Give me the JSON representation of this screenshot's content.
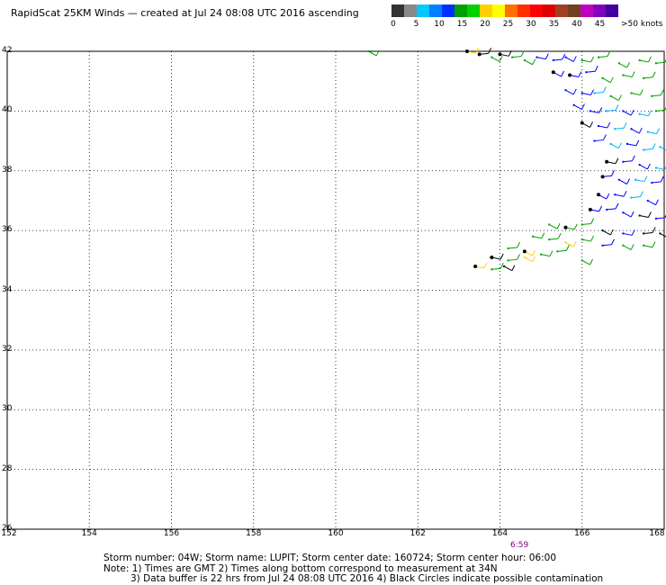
{
  "title": "RapidScat 25KM Winds — created at Jul 24 08:08 UTC 2016 ascending",
  "colorbar": {
    "colors": [
      "#333333",
      "#888888",
      "#00c8ff",
      "#0080ff",
      "#0030ff",
      "#00a000",
      "#00d000",
      "#ffd000",
      "#ffff00",
      "#ff7000",
      "#ff3000",
      "#ff0000",
      "#e00000",
      "#a04020",
      "#704020",
      "#c000c0",
      "#8000c0",
      "#4000a0"
    ],
    "labels": [
      "0",
      "5",
      "10",
      "15",
      "20",
      "25",
      "30",
      "35",
      "40",
      "45",
      ">50 knots"
    ]
  },
  "lat_labels": [
    "42",
    "40",
    "38",
    "36",
    "34",
    "32",
    "30",
    "28",
    "26"
  ],
  "lon_labels": [
    "152",
    "154",
    "156",
    "158",
    "160",
    "162",
    "164",
    "166",
    "168"
  ],
  "time_label": "6:59",
  "notes": {
    "line1": "Storm number: 04W;  Storm name: LUPIT;  Storm center date: 160724;  Storm center hour: 06:00",
    "line2": "Note: 1) Times are GMT  2) Times along bottom correspond to measurement at 34N",
    "line3": "3) Data buffer is 22 hrs from Jul 24 08:08 UTC 2016   4) Black Circles indicate possible contamination"
  },
  "map_data": {
    "lat_range": [
      26,
      42
    ],
    "lon_range": [
      152,
      168
    ],
    "wind_colors": {
      "black": "#000000",
      "blue": "#0000ff",
      "cyan": "#00b0ff",
      "green": "#00a000",
      "yellow": "#ffd000"
    },
    "barbs": [
      {
        "lon": 160.8,
        "lat": 42.0,
        "c": "green"
      },
      {
        "lon": 163.2,
        "lat": 42.0,
        "c": "yellow"
      },
      {
        "lon": 163.5,
        "lat": 41.9,
        "c": "black"
      },
      {
        "lon": 163.8,
        "lat": 41.8,
        "c": "green"
      },
      {
        "lon": 164.0,
        "lat": 41.9,
        "c": "black"
      },
      {
        "lon": 164.3,
        "lat": 41.8,
        "c": "green"
      },
      {
        "lon": 164.6,
        "lat": 41.7,
        "c": "green"
      },
      {
        "lon": 164.9,
        "lat": 41.8,
        "c": "blue"
      },
      {
        "lon": 165.3,
        "lat": 41.7,
        "c": "blue"
      },
      {
        "lon": 165.6,
        "lat": 41.8,
        "c": "blue"
      },
      {
        "lon": 166.0,
        "lat": 41.7,
        "c": "green"
      },
      {
        "lon": 166.4,
        "lat": 41.8,
        "c": "green"
      },
      {
        "lon": 166.9,
        "lat": 41.6,
        "c": "green"
      },
      {
        "lon": 167.4,
        "lat": 41.7,
        "c": "green"
      },
      {
        "lon": 167.8,
        "lat": 41.6,
        "c": "green"
      },
      {
        "lon": 165.3,
        "lat": 41.3,
        "c": "blue"
      },
      {
        "lon": 165.7,
        "lat": 41.2,
        "c": "blue"
      },
      {
        "lon": 166.1,
        "lat": 41.3,
        "c": "blue"
      },
      {
        "lon": 166.5,
        "lat": 41.1,
        "c": "green"
      },
      {
        "lon": 167.0,
        "lat": 41.2,
        "c": "green"
      },
      {
        "lon": 167.5,
        "lat": 41.1,
        "c": "green"
      },
      {
        "lon": 165.6,
        "lat": 40.7,
        "c": "blue"
      },
      {
        "lon": 166.0,
        "lat": 40.6,
        "c": "blue"
      },
      {
        "lon": 166.3,
        "lat": 40.6,
        "c": "cyan"
      },
      {
        "lon": 166.7,
        "lat": 40.5,
        "c": "green"
      },
      {
        "lon": 167.2,
        "lat": 40.6,
        "c": "green"
      },
      {
        "lon": 167.7,
        "lat": 40.5,
        "c": "green"
      },
      {
        "lon": 165.8,
        "lat": 40.2,
        "c": "blue"
      },
      {
        "lon": 166.2,
        "lat": 40.0,
        "c": "blue"
      },
      {
        "lon": 166.6,
        "lat": 40.0,
        "c": "cyan"
      },
      {
        "lon": 167.0,
        "lat": 40.0,
        "c": "blue"
      },
      {
        "lon": 167.4,
        "lat": 39.9,
        "c": "cyan"
      },
      {
        "lon": 167.8,
        "lat": 40.0,
        "c": "green"
      },
      {
        "lon": 166.0,
        "lat": 39.6,
        "c": "black"
      },
      {
        "lon": 166.4,
        "lat": 39.5,
        "c": "blue"
      },
      {
        "lon": 166.8,
        "lat": 39.4,
        "c": "cyan"
      },
      {
        "lon": 167.2,
        "lat": 39.4,
        "c": "blue"
      },
      {
        "lon": 167.6,
        "lat": 39.3,
        "c": "cyan"
      },
      {
        "lon": 166.3,
        "lat": 39.0,
        "c": "blue"
      },
      {
        "lon": 166.7,
        "lat": 38.9,
        "c": "cyan"
      },
      {
        "lon": 167.1,
        "lat": 38.9,
        "c": "blue"
      },
      {
        "lon": 167.5,
        "lat": 38.7,
        "c": "cyan"
      },
      {
        "lon": 167.9,
        "lat": 38.8,
        "c": "cyan"
      },
      {
        "lon": 166.6,
        "lat": 38.3,
        "c": "black"
      },
      {
        "lon": 167.0,
        "lat": 38.3,
        "c": "blue"
      },
      {
        "lon": 167.4,
        "lat": 38.2,
        "c": "blue"
      },
      {
        "lon": 167.8,
        "lat": 38.1,
        "c": "cyan"
      },
      {
        "lon": 166.5,
        "lat": 37.8,
        "c": "blue"
      },
      {
        "lon": 166.9,
        "lat": 37.7,
        "c": "blue"
      },
      {
        "lon": 167.3,
        "lat": 37.7,
        "c": "cyan"
      },
      {
        "lon": 167.7,
        "lat": 37.6,
        "c": "blue"
      },
      {
        "lon": 166.4,
        "lat": 37.2,
        "c": "blue"
      },
      {
        "lon": 166.8,
        "lat": 37.2,
        "c": "blue"
      },
      {
        "lon": 167.2,
        "lat": 37.1,
        "c": "cyan"
      },
      {
        "lon": 167.6,
        "lat": 37.0,
        "c": "blue"
      },
      {
        "lon": 166.2,
        "lat": 36.7,
        "c": "blue"
      },
      {
        "lon": 166.6,
        "lat": 36.7,
        "c": "blue"
      },
      {
        "lon": 167.0,
        "lat": 36.6,
        "c": "blue"
      },
      {
        "lon": 167.4,
        "lat": 36.5,
        "c": "black"
      },
      {
        "lon": 167.8,
        "lat": 36.4,
        "c": "blue"
      },
      {
        "lon": 165.2,
        "lat": 36.2,
        "c": "green"
      },
      {
        "lon": 165.6,
        "lat": 36.1,
        "c": "green"
      },
      {
        "lon": 166.0,
        "lat": 36.2,
        "c": "green"
      },
      {
        "lon": 166.5,
        "lat": 36.0,
        "c": "black"
      },
      {
        "lon": 167.0,
        "lat": 35.9,
        "c": "blue"
      },
      {
        "lon": 167.5,
        "lat": 35.9,
        "c": "black"
      },
      {
        "lon": 167.9,
        "lat": 35.9,
        "c": "black"
      },
      {
        "lon": 164.8,
        "lat": 35.8,
        "c": "green"
      },
      {
        "lon": 165.2,
        "lat": 35.7,
        "c": "green"
      },
      {
        "lon": 165.6,
        "lat": 35.6,
        "c": "yellow"
      },
      {
        "lon": 166.0,
        "lat": 35.7,
        "c": "green"
      },
      {
        "lon": 166.5,
        "lat": 35.5,
        "c": "blue"
      },
      {
        "lon": 167.0,
        "lat": 35.5,
        "c": "green"
      },
      {
        "lon": 167.5,
        "lat": 35.5,
        "c": "green"
      },
      {
        "lon": 164.2,
        "lat": 35.4,
        "c": "green"
      },
      {
        "lon": 164.6,
        "lat": 35.3,
        "c": "yellow"
      },
      {
        "lon": 165.0,
        "lat": 35.2,
        "c": "green"
      },
      {
        "lon": 165.4,
        "lat": 35.3,
        "c": "green"
      },
      {
        "lon": 166.0,
        "lat": 35.0,
        "c": "green"
      },
      {
        "lon": 163.8,
        "lat": 35.1,
        "c": "black"
      },
      {
        "lon": 164.2,
        "lat": 35.0,
        "c": "green"
      },
      {
        "lon": 164.6,
        "lat": 35.1,
        "c": "yellow"
      },
      {
        "lon": 163.4,
        "lat": 34.8,
        "c": "yellow"
      },
      {
        "lon": 163.8,
        "lat": 34.7,
        "c": "green"
      },
      {
        "lon": 164.1,
        "lat": 34.8,
        "c": "black"
      }
    ],
    "contamination": [
      {
        "lon": 163.2,
        "lat": 42.0
      },
      {
        "lon": 163.5,
        "lat": 41.9
      },
      {
        "lon": 164.0,
        "lat": 41.9
      },
      {
        "lon": 165.3,
        "lat": 41.3
      },
      {
        "lon": 165.7,
        "lat": 41.2
      },
      {
        "lon": 166.0,
        "lat": 39.6
      },
      {
        "lon": 166.6,
        "lat": 38.3
      },
      {
        "lon": 166.5,
        "lat": 37.8
      },
      {
        "lon": 166.4,
        "lat": 37.2
      },
      {
        "lon": 166.2,
        "lat": 36.7
      },
      {
        "lon": 165.6,
        "lat": 36.1
      },
      {
        "lon": 164.6,
        "lat": 35.3
      },
      {
        "lon": 163.8,
        "lat": 35.1
      },
      {
        "lon": 163.4,
        "lat": 34.8
      }
    ]
  }
}
